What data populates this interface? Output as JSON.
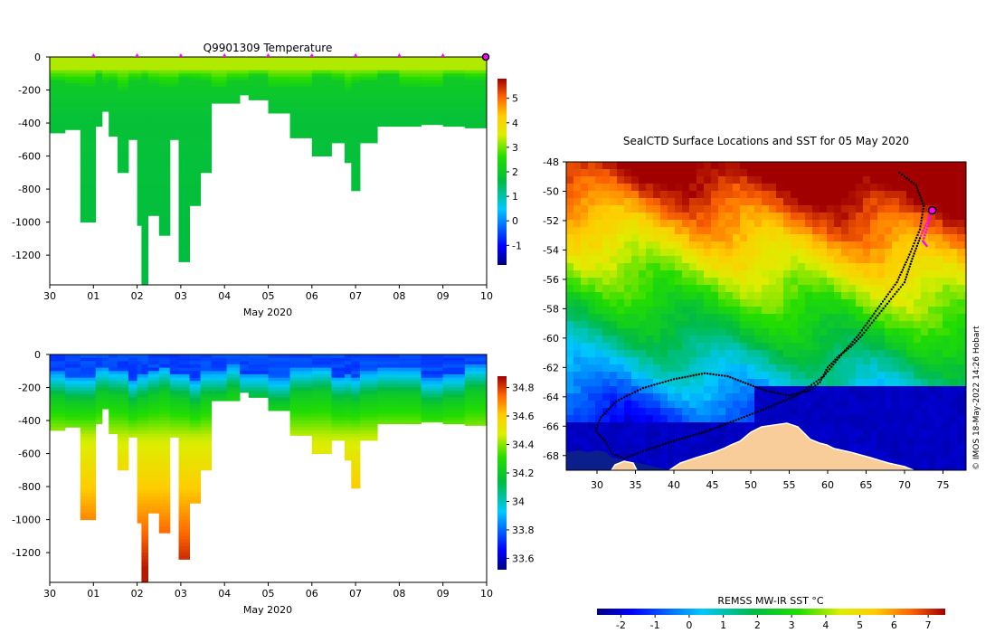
{
  "chart_data": [
    {
      "type": "heatmap",
      "panel": "temperature-section",
      "title": "Q9901309  Temperature",
      "xlabel": "May 2020",
      "x_ticks": [
        "30",
        "01",
        "02",
        "03",
        "04",
        "05",
        "06",
        "07",
        "08",
        "09",
        "10"
      ],
      "y_ticks": [
        "0",
        "-200",
        "-400",
        "-600",
        "-800",
        "-1000",
        "-1200"
      ],
      "ylim": [
        -1380,
        0
      ],
      "colorbar_ticks": [
        "5",
        "4",
        "3",
        "2",
        "1",
        "0",
        "-1"
      ],
      "colorbar_range": [
        -1.8,
        5.8
      ],
      "profiles": [
        {
          "day": 0.0,
          "max_depth": 460
        },
        {
          "day": 0.35,
          "max_depth": 440
        },
        {
          "day": 0.7,
          "max_depth": 1000
        },
        {
          "day": 1.05,
          "max_depth": 420
        },
        {
          "day": 1.2,
          "max_depth": 330
        },
        {
          "day": 1.35,
          "max_depth": 480
        },
        {
          "day": 1.55,
          "max_depth": 700
        },
        {
          "day": 1.8,
          "max_depth": 500
        },
        {
          "day": 2.0,
          "max_depth": 1020
        },
        {
          "day": 2.1,
          "max_depth": 1380
        },
        {
          "day": 2.25,
          "max_depth": 960
        },
        {
          "day": 2.5,
          "max_depth": 1080
        },
        {
          "day": 2.75,
          "max_depth": 500
        },
        {
          "day": 2.95,
          "max_depth": 1240
        },
        {
          "day": 3.2,
          "max_depth": 900
        },
        {
          "day": 3.45,
          "max_depth": 700
        },
        {
          "day": 3.7,
          "max_depth": 280
        },
        {
          "day": 4.05,
          "max_depth": 280
        },
        {
          "day": 4.35,
          "max_depth": 230
        },
        {
          "day": 4.55,
          "max_depth": 260
        },
        {
          "day": 5.0,
          "max_depth": 340
        },
        {
          "day": 5.5,
          "max_depth": 490
        },
        {
          "day": 6.0,
          "max_depth": 600
        },
        {
          "day": 6.45,
          "max_depth": 520
        },
        {
          "day": 6.75,
          "max_depth": 640
        },
        {
          "day": 6.9,
          "max_depth": 810
        },
        {
          "day": 7.1,
          "max_depth": 520
        },
        {
          "day": 7.5,
          "max_depth": 420
        },
        {
          "day": 8.0,
          "max_depth": 420
        },
        {
          "day": 8.5,
          "max_depth": 410
        },
        {
          "day": 9.0,
          "max_depth": 420
        },
        {
          "day": 9.5,
          "max_depth": 430
        }
      ],
      "surface_markers_day": [
        1,
        2,
        3,
        4,
        5,
        6,
        7,
        8,
        9
      ],
      "current_position_day": 10,
      "marker_color": "#ff00ff"
    },
    {
      "type": "heatmap",
      "panel": "salinity-section",
      "title": "",
      "xlabel": "May 2020",
      "x_ticks": [
        "30",
        "01",
        "02",
        "03",
        "04",
        "05",
        "06",
        "07",
        "08",
        "09",
        "10"
      ],
      "y_ticks": [
        "0",
        "-200",
        "-400",
        "-600",
        "-800",
        "-1000",
        "-1200"
      ],
      "ylim": [
        -1380,
        0
      ],
      "colorbar_ticks": [
        "34.8",
        "34.6",
        "34.4",
        "34.2",
        "34",
        "33.8",
        "33.6"
      ],
      "colorbar_range": [
        33.52,
        34.88
      ]
    },
    {
      "type": "heatmap",
      "panel": "sst-map",
      "title": "SealCTD Surface Locations and SST for 05 May 2020",
      "x_ticks": [
        "30",
        "35",
        "40",
        "45",
        "50",
        "55",
        "60",
        "65",
        "70",
        "75"
      ],
      "y_ticks": [
        "-48",
        "-50",
        "-52",
        "-54",
        "-56",
        "-58",
        "-60",
        "-62",
        "-64",
        "-66",
        "-68"
      ],
      "xlim": [
        26,
        78
      ],
      "ylim": [
        -69,
        -48
      ],
      "colorbar_label": "REMSS MW-IR SST °C",
      "colorbar_ticks": [
        "-2",
        "-1",
        "0",
        "1",
        "2",
        "3",
        "4",
        "5",
        "6",
        "7"
      ],
      "colorbar_range": [
        -2.7,
        7.5
      ],
      "seal_track": [
        [
          73.5,
          -51.3
        ],
        [
          73.0,
          -52.0
        ],
        [
          72.0,
          -53.2
        ],
        [
          71.0,
          -54.6
        ],
        [
          70.0,
          -56.2
        ],
        [
          68.0,
          -57.5
        ],
        [
          66.0,
          -58.8
        ],
        [
          64.5,
          -59.8
        ],
        [
          63.0,
          -60.6
        ],
        [
          61.5,
          -61.2
        ],
        [
          60.0,
          -62.0
        ],
        [
          59.0,
          -63.0
        ],
        [
          57.5,
          -63.6
        ],
        [
          55.0,
          -63.9
        ],
        [
          52.0,
          -63.6
        ],
        [
          50.0,
          -63.2
        ],
        [
          47.0,
          -62.6
        ],
        [
          44.0,
          -62.4
        ],
        [
          40.0,
          -62.8
        ],
        [
          36.0,
          -63.4
        ],
        [
          32.5,
          -64.3
        ],
        [
          30.5,
          -65.4
        ],
        [
          29.8,
          -66.3
        ],
        [
          31.0,
          -67.0
        ],
        [
          32.0,
          -67.9
        ],
        [
          33.5,
          -68.2
        ],
        [
          36.0,
          -67.7
        ],
        [
          40.0,
          -67.0
        ],
        [
          44.0,
          -66.4
        ],
        [
          47.0,
          -65.8
        ],
        [
          52.0,
          -64.8
        ],
        [
          56.0,
          -63.9
        ],
        [
          59.5,
          -62.6
        ],
        [
          62.0,
          -61.0
        ],
        [
          64.0,
          -59.8
        ],
        [
          66.5,
          -58.0
        ],
        [
          69.0,
          -56.2
        ],
        [
          70.5,
          -54.5
        ],
        [
          72.0,
          -52.6
        ],
        [
          72.5,
          -51.0
        ],
        [
          71.5,
          -49.6
        ],
        [
          70.0,
          -49.0
        ],
        [
          69.0,
          -48.6
        ]
      ],
      "current_position": [
        73.6,
        -51.3
      ],
      "recent_track_color": "#ff00ff",
      "land_color": "#f9cd9a"
    }
  ],
  "credit": "© IMOS 18-May-2022 14:26 Hobart"
}
